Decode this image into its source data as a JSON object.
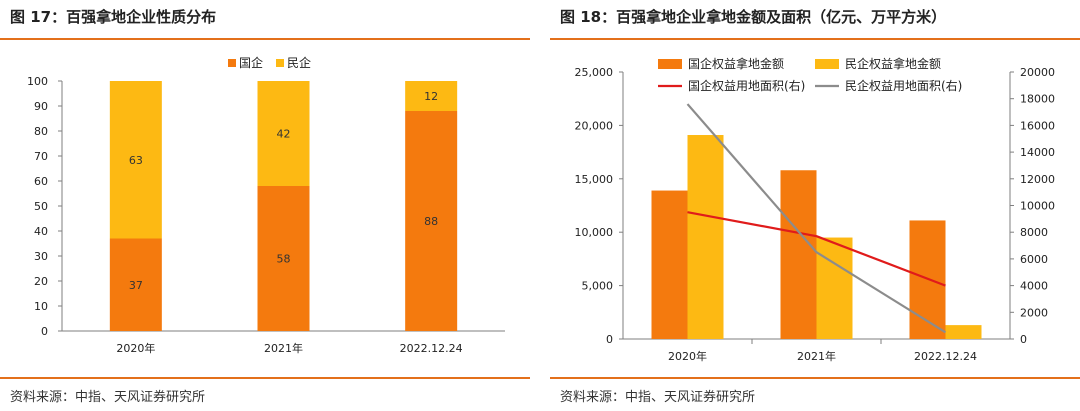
{
  "colors": {
    "soe": "#f47a0e",
    "private": "#fdb913",
    "soe_line": "#e01b1b",
    "private_line": "#8c8c8c",
    "accent": "#e3701b"
  },
  "left": {
    "title": "图 17：百强拿地企业性质分布",
    "source": "资料来源：中指、天风证券研究所"
  },
  "right": {
    "title": "图 18：百强拿地企业拿地金额及面积（亿元、万平方米）",
    "source": "资料来源：中指、天风证券研究所"
  },
  "chart_data": [
    {
      "type": "bar",
      "stacked": true,
      "categories": [
        "2020年",
        "2021年",
        "2022.12.24"
      ],
      "series": [
        {
          "name": "国企",
          "values": [
            37,
            58,
            88
          ],
          "color": "#f47a0e"
        },
        {
          "name": "民企",
          "values": [
            63,
            42,
            12
          ],
          "color": "#fdb913"
        }
      ],
      "ylim": [
        0,
        100
      ],
      "yticks": [
        "0",
        "10",
        "20",
        "30",
        "40",
        "50",
        "60",
        "70",
        "80",
        "90",
        "100"
      ],
      "legend": "top-center",
      "grid": false
    },
    {
      "type": "bar",
      "categories": [
        "2020年",
        "2021年",
        "2022.12.24"
      ],
      "bar_series": [
        {
          "name": "国企权益拿地金额",
          "values": [
            13900,
            15800,
            11100
          ],
          "color": "#f47a0e"
        },
        {
          "name": "民企权益拿地金额",
          "values": [
            19100,
            9500,
            1300
          ],
          "color": "#fdb913"
        }
      ],
      "line_series": [
        {
          "name": "国企权益用地面积(右)",
          "values": [
            9500,
            7700,
            4000
          ],
          "color": "#e01b1b",
          "axis": "right"
        },
        {
          "name": "民企权益用地面积(右)",
          "values": [
            17600,
            6500,
            500
          ],
          "color": "#8c8c8c",
          "axis": "right"
        }
      ],
      "ylim_left": [
        0,
        25000
      ],
      "yticks_left": [
        "0",
        "5,000",
        "10,000",
        "15,000",
        "20,000",
        "25,000"
      ],
      "ylim_right": [
        0,
        20000
      ],
      "yticks_right": [
        "0",
        "2000",
        "4000",
        "6000",
        "8000",
        "10000",
        "12000",
        "14000",
        "16000",
        "18000",
        "20000"
      ],
      "legend": "top",
      "grid": false
    }
  ]
}
